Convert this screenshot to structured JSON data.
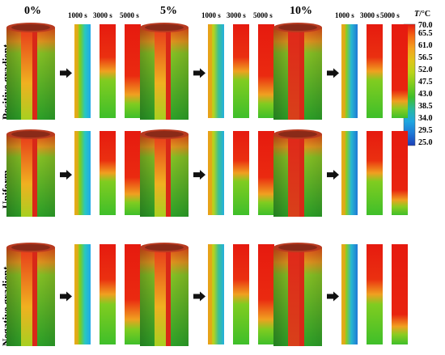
{
  "columns": [
    {
      "label": "0%"
    },
    {
      "label": "5%"
    },
    {
      "label": "10%"
    }
  ],
  "time_labels": [
    "1000 s",
    "3000 s",
    "5000 s"
  ],
  "rows": [
    {
      "label": "Positive gradient"
    },
    {
      "label": "Uniform"
    },
    {
      "label": "Negative gradient"
    }
  ],
  "colorbar": {
    "title_italic": "T",
    "title_rest": "/°C",
    "ticks": [
      "70.0",
      "65.5",
      "61.0",
      "56.5",
      "52.0",
      "47.5",
      "43.0",
      "38.5",
      "34.0",
      "29.5",
      "25.0"
    ],
    "colors": [
      "#e61a0f",
      "#f56a14",
      "#f5a31f",
      "#e0c51a",
      "#b8d41a",
      "#7ccc1e",
      "#3fbf2a",
      "#27b8a0",
      "#1fa6e0",
      "#1f78d6",
      "#1c3fb8"
    ]
  }
}
